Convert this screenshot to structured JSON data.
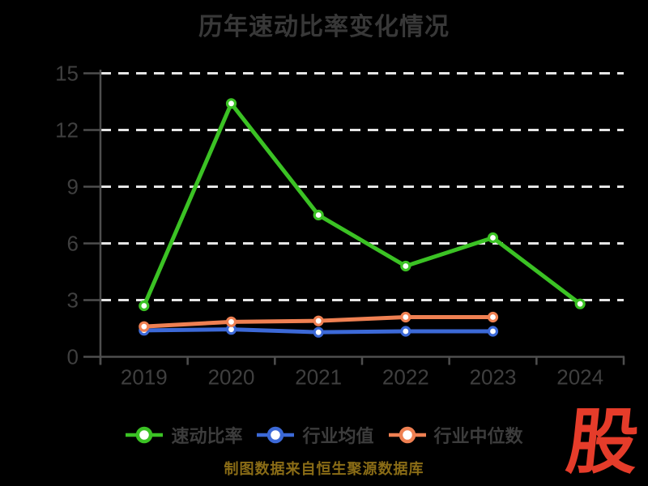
{
  "title": "历年速动比率变化情况",
  "caption": "制图数据来自恒生聚源数据库",
  "logo_text": "股",
  "colors": {
    "background": "#000000",
    "title_text": "#383838",
    "axis_label": "#3f3f3f",
    "axis_line": "#4e4e4e",
    "gridline": "#e5e5e5",
    "legend_text": "#3c3c3c",
    "caption_text": "#8a6c16",
    "logo_red": "#e53c2a",
    "marker_fill": "#ffffff",
    "series": [
      "#3bc224",
      "#3c69d7",
      "#ef8052"
    ]
  },
  "chart_data": {
    "type": "line",
    "title": "历年速动比率变化情况",
    "categories": [
      "2019",
      "2020",
      "2021",
      "2022",
      "2023",
      "2024"
    ],
    "series": [
      {
        "name": "速动比率",
        "values": [
          2.7,
          13.4,
          7.5,
          4.8,
          6.3,
          2.8
        ]
      },
      {
        "name": "行业均值",
        "values": [
          1.4,
          1.45,
          1.3,
          1.35,
          1.35,
          null
        ]
      },
      {
        "name": "行业中位数",
        "values": [
          1.6,
          1.85,
          1.9,
          2.1,
          2.1,
          null
        ]
      }
    ],
    "xlabel": "",
    "ylabel": "",
    "ylim": [
      0,
      15
    ],
    "yticks": [
      0,
      3,
      6,
      9,
      12,
      15
    ],
    "grid": "horizontal-dashed-white",
    "legend_position": "bottom"
  }
}
